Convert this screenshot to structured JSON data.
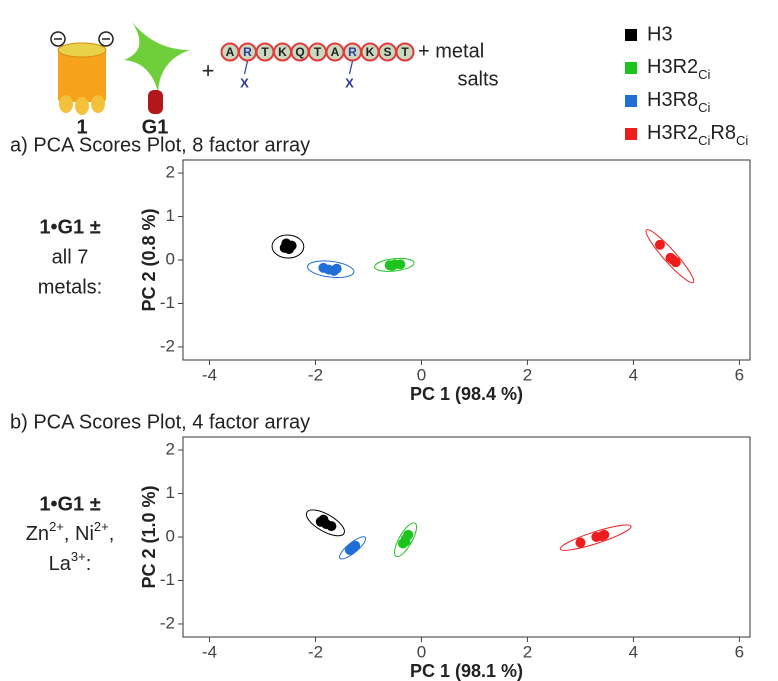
{
  "scheme": {
    "host_label": "1",
    "guest_label": "G1",
    "plus": "+",
    "peptide": [
      "A",
      "R",
      "T",
      "K",
      "Q",
      "T",
      "A",
      "R",
      "K",
      "S",
      "T"
    ],
    "mods": [
      "X",
      "X"
    ],
    "salts": [
      "+ metal",
      "salts"
    ]
  },
  "chart_data": [
    {
      "type": "scatter",
      "title": "a) PCA Scores Plot, 8 factor array",
      "xlabel": "PC 1 (98.4 %)",
      "ylabel": "PC 2 (0.8 %)",
      "side_label": [
        "1•G1 ±",
        "all 7",
        "metals:"
      ],
      "xlim": [
        -4.5,
        6.2
      ],
      "xticks": [
        -4,
        -2,
        0,
        2,
        4,
        6
      ],
      "ylim": [
        -2.3,
        2.3
      ],
      "yticks": [
        -2,
        -1,
        0,
        1,
        2
      ],
      "legend": "top right",
      "series": [
        {
          "name": "H3",
          "color": "#000000",
          "x": [
            -2.55,
            -2.45,
            -2.58,
            -2.5
          ],
          "values": [
            0.38,
            0.33,
            0.28,
            0.25
          ]
        },
        {
          "name": "H3R2Ci",
          "color": "#1ec41e",
          "x": [
            -0.6,
            -0.5,
            -0.4,
            -0.55
          ],
          "values": [
            -0.12,
            -0.1,
            -0.1,
            -0.13
          ]
        },
        {
          "name": "H3R8Ci",
          "color": "#1f6fd6",
          "x": [
            -1.85,
            -1.65,
            -1.6,
            -1.75
          ],
          "values": [
            -0.18,
            -0.25,
            -0.2,
            -0.22
          ]
        },
        {
          "name": "H3R2CiR8Ci",
          "color": "#ee1c1c",
          "x": [
            4.5,
            4.7,
            4.8,
            4.75
          ],
          "values": [
            0.35,
            0.05,
            -0.05,
            0.0
          ]
        }
      ]
    },
    {
      "type": "scatter",
      "title": "b) PCA Scores Plot, 4 factor array",
      "xlabel": "PC 1 (98.1 %)",
      "ylabel": "PC 2 (1.0 %)",
      "side_label": [
        "1•G1 ±",
        "Zn2+, Ni2+,",
        "La3+:"
      ],
      "xlim": [
        -4.5,
        6.2
      ],
      "xticks": [
        -4,
        -2,
        0,
        2,
        4,
        6
      ],
      "ylim": [
        -2.3,
        2.3
      ],
      "yticks": [
        -2,
        -1,
        0,
        1,
        2
      ],
      "series": [
        {
          "name": "H3",
          "color": "#000000",
          "x": [
            -1.85,
            -1.8,
            -1.7,
            -1.9
          ],
          "values": [
            0.4,
            0.3,
            0.25,
            0.35
          ]
        },
        {
          "name": "H3R2Ci",
          "color": "#1ec41e",
          "x": [
            -0.35,
            -0.3,
            -0.25,
            -0.3
          ],
          "values": [
            -0.15,
            -0.05,
            0.05,
            -0.1
          ]
        },
        {
          "name": "H3R8Ci",
          "color": "#1f6fd6",
          "x": [
            -1.3,
            -1.25,
            -1.35
          ],
          "values": [
            -0.25,
            -0.2,
            -0.3
          ]
        },
        {
          "name": "H3R2CiR8Ci",
          "color": "#ee1c1c",
          "x": [
            3.0,
            3.3,
            3.45,
            3.4
          ],
          "values": [
            -0.13,
            0.0,
            0.05,
            0.02
          ]
        }
      ]
    }
  ]
}
